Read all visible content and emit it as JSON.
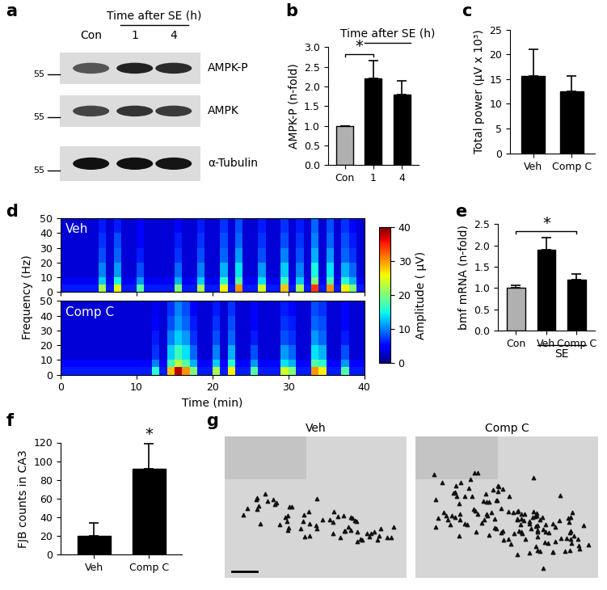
{
  "chart_data": [
    {
      "panel": "b",
      "type": "bar",
      "title": "Time after SE (h)",
      "categories": [
        "Con",
        "1",
        "4"
      ],
      "values": [
        1.0,
        2.2,
        1.8
      ],
      "errors": [
        0,
        0.45,
        0.35
      ],
      "colors": [
        "#b0b0b0",
        "#000000",
        "#000000"
      ],
      "y_label": "AMPK-P (n-fold)",
      "ylim": [
        0.0,
        3.0
      ],
      "yticks": [
        0.0,
        0.5,
        1.0,
        1.5,
        2.0,
        2.5,
        3.0
      ],
      "annotations": [
        {
          "text": "*",
          "categories": [
            "Con",
            "1"
          ]
        }
      ]
    },
    {
      "panel": "c",
      "type": "bar",
      "categories": [
        "Veh",
        "Comp C"
      ],
      "values": [
        15.7,
        12.5
      ],
      "errors": [
        5.3,
        3.2
      ],
      "colors": [
        "#000000",
        "#000000"
      ],
      "y_label": "Total power (μV x 10³)",
      "ylim": [
        0,
        25
      ],
      "yticks": [
        0,
        5,
        10,
        15,
        20,
        25
      ]
    },
    {
      "panel": "d",
      "type": "heatmap",
      "x_label": "Time (min)",
      "y_label": "Frequency (Hz)",
      "xlim": [
        0,
        40
      ],
      "ylim": [
        0,
        50
      ],
      "xticks": [
        0,
        10,
        20,
        30,
        40
      ],
      "yticks": [
        0,
        10,
        20,
        30,
        40,
        50
      ],
      "x_edges": [
        0,
        1,
        2,
        3,
        4,
        5,
        6,
        7,
        8,
        9,
        10,
        11,
        12,
        13,
        14,
        15,
        16,
        17,
        18,
        19,
        20,
        21,
        22,
        23,
        24,
        25,
        26,
        27,
        28,
        29,
        30,
        31,
        32,
        33,
        34,
        35,
        36,
        37,
        38,
        39,
        40
      ],
      "y_edges": [
        0,
        5,
        10,
        20,
        30,
        40,
        50
      ],
      "maps": [
        {
          "name": "Veh",
          "cells": [
            [
              6,
              6,
              6,
              6,
              6,
              22,
              6,
              25,
              6,
              6,
              18,
              6,
              6,
              6,
              6,
              20,
              6,
              6,
              22,
              6,
              6,
              26,
              6,
              30,
              6,
              6,
              24,
              6,
              6,
              28,
              6,
              22,
              6,
              34,
              6,
              30,
              6,
              26,
              20,
              6
            ],
            [
              4,
              4,
              4,
              4,
              4,
              13,
              4,
              15,
              4,
              4,
              11,
              4,
              4,
              4,
              4,
              12,
              4,
              4,
              13,
              4,
              4,
              16,
              4,
              18,
              4,
              4,
              14,
              4,
              4,
              17,
              4,
              13,
              4,
              20,
              4,
              18,
              4,
              16,
              12,
              4
            ],
            [
              3,
              3,
              3,
              3,
              3,
              10,
              3,
              11,
              3,
              3,
              8,
              3,
              3,
              3,
              3,
              9,
              3,
              3,
              10,
              3,
              3,
              12,
              3,
              14,
              3,
              3,
              11,
              3,
              3,
              13,
              3,
              10,
              3,
              15,
              3,
              14,
              3,
              12,
              9,
              3
            ],
            [
              3,
              3,
              3,
              3,
              3,
              8,
              3,
              9,
              3,
              3,
              6,
              3,
              3,
              3,
              3,
              7,
              3,
              3,
              8,
              3,
              3,
              9,
              3,
              11,
              3,
              3,
              8,
              3,
              3,
              10,
              3,
              8,
              3,
              12,
              3,
              11,
              3,
              9,
              7,
              3
            ],
            [
              3,
              3,
              3,
              3,
              3,
              7,
              3,
              8,
              3,
              3,
              5,
              3,
              3,
              3,
              3,
              6,
              3,
              3,
              7,
              3,
              3,
              8,
              3,
              9,
              3,
              3,
              7,
              3,
              3,
              8,
              3,
              7,
              3,
              10,
              3,
              9,
              3,
              8,
              6,
              3
            ],
            [
              3,
              3,
              3,
              3,
              3,
              6,
              3,
              6,
              3,
              3,
              5,
              3,
              3,
              3,
              3,
              5,
              3,
              3,
              6,
              3,
              3,
              7,
              3,
              8,
              3,
              3,
              6,
              3,
              3,
              7,
              3,
              6,
              3,
              9,
              3,
              8,
              3,
              7,
              5,
              3
            ]
          ]
        },
        {
          "name": "Comp C",
          "cells": [
            [
              6,
              6,
              6,
              6,
              6,
              6,
              6,
              6,
              6,
              6,
              6,
              6,
              16,
              6,
              28,
              38,
              30,
              20,
              6,
              6,
              22,
              6,
              26,
              6,
              6,
              18,
              6,
              6,
              6,
              24,
              20,
              6,
              6,
              30,
              26,
              6,
              6,
              18,
              6,
              6
            ],
            [
              5,
              5,
              5,
              5,
              5,
              5,
              5,
              5,
              5,
              5,
              5,
              5,
              10,
              5,
              17,
              23,
              18,
              12,
              5,
              5,
              13,
              5,
              16,
              5,
              5,
              11,
              5,
              5,
              5,
              14,
              12,
              5,
              5,
              18,
              16,
              5,
              5,
              11,
              5,
              5
            ],
            [
              3,
              3,
              3,
              3,
              3,
              3,
              3,
              3,
              3,
              3,
              3,
              3,
              7,
              3,
              13,
              17,
              14,
              9,
              3,
              3,
              10,
              3,
              12,
              3,
              3,
              8,
              3,
              3,
              3,
              11,
              9,
              3,
              3,
              14,
              12,
              3,
              3,
              8,
              3,
              3
            ],
            [
              3,
              3,
              3,
              3,
              3,
              3,
              3,
              3,
              3,
              3,
              3,
              3,
              6,
              3,
              10,
              13,
              11,
              7,
              3,
              3,
              8,
              3,
              9,
              3,
              3,
              6,
              3,
              3,
              3,
              8,
              7,
              3,
              3,
              11,
              9,
              3,
              3,
              6,
              3,
              3
            ],
            [
              3,
              3,
              3,
              3,
              3,
              3,
              3,
              3,
              3,
              3,
              3,
              3,
              5,
              3,
              8,
              11,
              9,
              6,
              3,
              3,
              7,
              3,
              8,
              3,
              3,
              5,
              3,
              3,
              3,
              7,
              6,
              3,
              3,
              9,
              8,
              3,
              3,
              5,
              3,
              3
            ],
            [
              3,
              3,
              3,
              3,
              3,
              3,
              3,
              3,
              3,
              3,
              3,
              3,
              4,
              3,
              7,
              10,
              8,
              5,
              3,
              3,
              6,
              3,
              7,
              3,
              3,
              5,
              3,
              3,
              3,
              6,
              5,
              3,
              3,
              8,
              7,
              3,
              3,
              5,
              3,
              3
            ]
          ]
        }
      ],
      "colorbar": {
        "label": "Amplitude ( μV)",
        "range": [
          0,
          40
        ],
        "ticks": [
          0,
          10,
          20,
          30,
          40
        ]
      }
    },
    {
      "panel": "e",
      "type": "bar",
      "categories": [
        "Con",
        "Veh",
        "Comp C"
      ],
      "values": [
        1.0,
        1.9,
        1.2
      ],
      "errors": [
        0.07,
        0.28,
        0.13
      ],
      "colors": [
        "#b0b0b0",
        "#000000",
        "#000000"
      ],
      "y_label": "bmf mRNA (n-fold)",
      "ylim": [
        0.0,
        2.5
      ],
      "yticks": [
        0.0,
        0.5,
        1.0,
        1.5,
        2.0,
        2.5
      ],
      "group": {
        "text": "SE",
        "categories": [
          "Veh",
          "Comp C"
        ]
      },
      "annotations": [
        {
          "text": "*",
          "categories": [
            "Con",
            "Comp C"
          ]
        }
      ]
    },
    {
      "panel": "f",
      "type": "bar",
      "categories": [
        "Veh",
        "Comp C"
      ],
      "values": [
        20,
        92
      ],
      "errors": [
        14,
        27
      ],
      "colors": [
        "#000000",
        "#000000"
      ],
      "y_label": "FJB counts in CA3",
      "ylim": [
        0,
        120
      ],
      "yticks": [
        0,
        20,
        40,
        60,
        80,
        100,
        120
      ],
      "annotations": [
        {
          "text": "*",
          "categories": [
            "Comp C"
          ]
        }
      ]
    }
  ],
  "blot": {
    "panel": "a",
    "lanes_title": "Time after SE (h)",
    "lanes": [
      "Con",
      "1",
      "4"
    ],
    "rows": [
      "AMPK-P",
      "AMPK",
      "α-Tubulin"
    ],
    "marker": 55
  },
  "micrographs": {
    "panel": "g",
    "images": [
      "Veh",
      "Comp C"
    ]
  }
}
